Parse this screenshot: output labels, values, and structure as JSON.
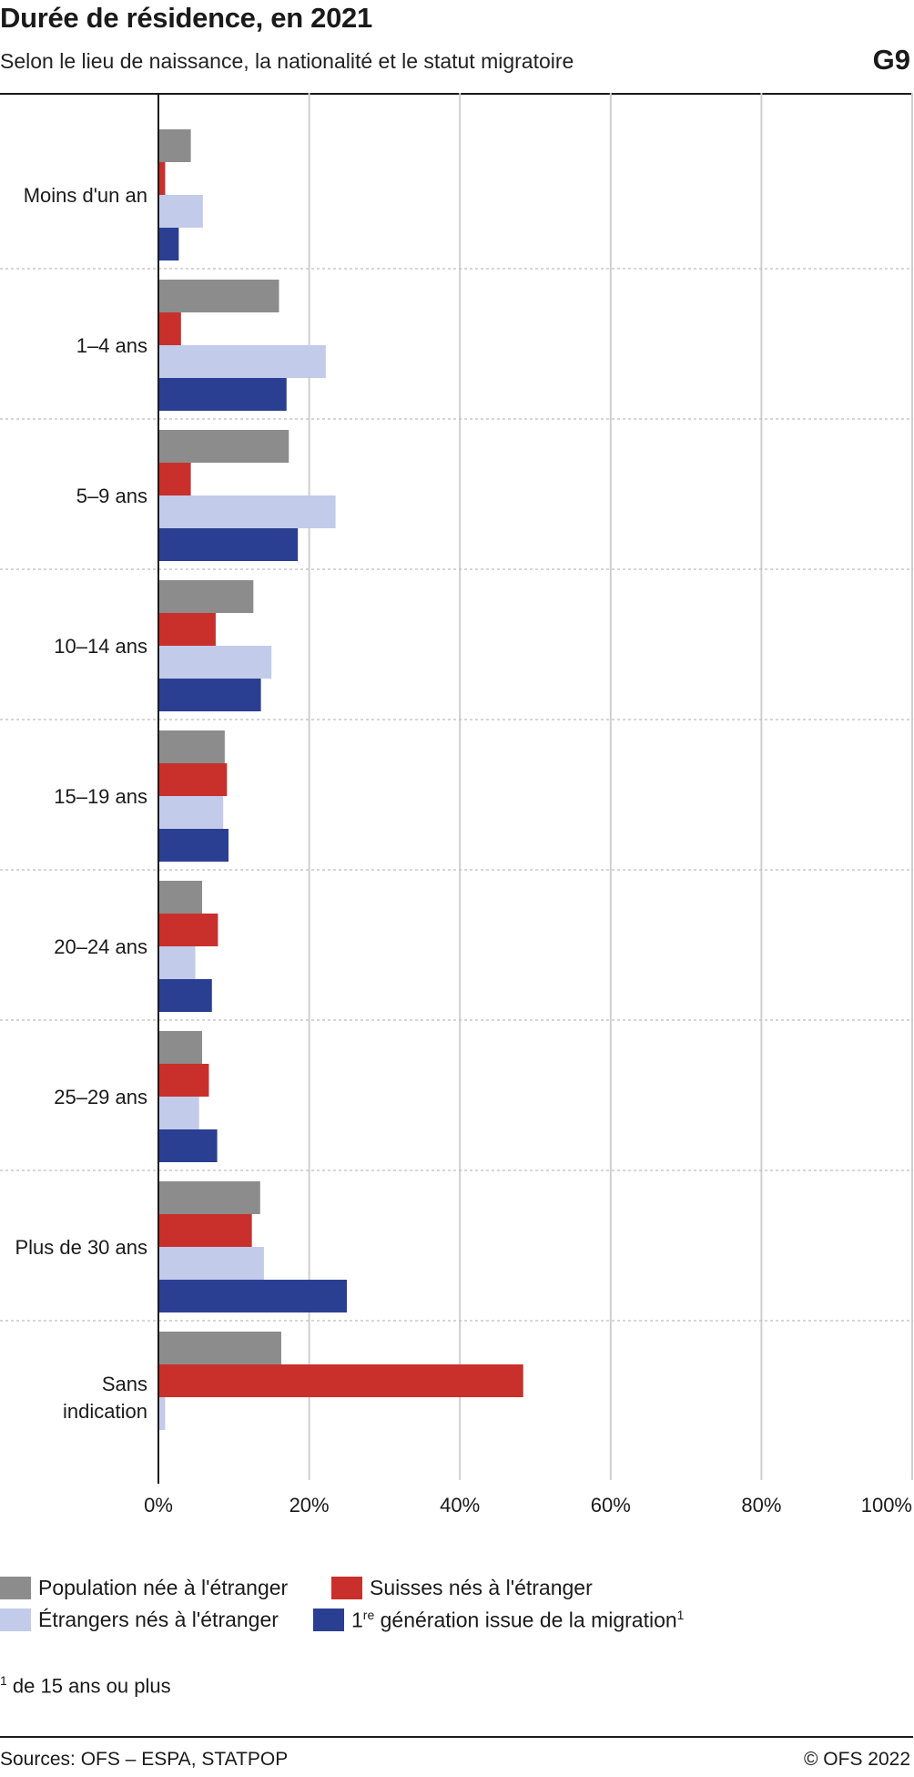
{
  "header": {
    "title": "Durée de résidence, en 2021",
    "subtitle": "Selon le lieu de naissance, la nationalité et le statut migratoire",
    "code": "G9"
  },
  "chart_data": {
    "type": "bar",
    "orientation": "horizontal",
    "title": "Durée de résidence, en 2021",
    "subtitle": "Selon le lieu de naissance, la nationalité et le statut migratoire",
    "categories": [
      "Moins d'un an",
      "1–4 ans",
      "5–9 ans",
      "10–14 ans",
      "15–19 ans",
      "20–24 ans",
      "25–29 ans",
      "Plus de 30 ans",
      "Sans indication"
    ],
    "category_lines": [
      [
        "Moins d'un an"
      ],
      [
        "1–4 ans"
      ],
      [
        "5–9 ans"
      ],
      [
        "10–14 ans"
      ],
      [
        "15–19 ans"
      ],
      [
        "20–24 ans"
      ],
      [
        "25–29 ans"
      ],
      [
        "Plus de 30 ans"
      ],
      [
        "Sans",
        "indication"
      ]
    ],
    "series": [
      {
        "name": "Population née à  l'étranger",
        "color": "#8c8c8c",
        "values": [
          4.3,
          16.0,
          17.3,
          12.6,
          8.8,
          5.8,
          5.8,
          13.5,
          16.3
        ]
      },
      {
        "name": "Suisses nés à l'étranger",
        "color": "#c9302c",
        "values": [
          0.9,
          3.0,
          4.3,
          7.6,
          9.1,
          7.9,
          6.7,
          12.4,
          48.4
        ]
      },
      {
        "name": "Étrangers nés à l'étranger",
        "color": "#c2cbea",
        "values": [
          5.9,
          22.2,
          23.5,
          15.0,
          8.6,
          4.9,
          5.4,
          14.0,
          0.9
        ]
      },
      {
        "name": "1re génération issue de la migration",
        "color": "#2b3f92",
        "values": [
          2.7,
          17.0,
          18.5,
          13.6,
          9.3,
          7.1,
          7.8,
          25.0,
          0
        ]
      }
    ],
    "xlim": [
      0,
      100
    ],
    "ticks": [
      "0%",
      "20%",
      "40%",
      "60%",
      "80%",
      "100%"
    ],
    "tick_values": [
      0,
      20,
      40,
      60,
      80,
      100
    ],
    "grid": true,
    "legend_position": "bottom"
  },
  "legend": {
    "items": [
      {
        "label": "Population née à  l'étranger",
        "color": "#8c8c8c"
      },
      {
        "label": "Suisses nés à l'étranger",
        "color": "#c9302c"
      },
      {
        "label": "Étrangers nés à l'étranger",
        "color": "#c2cbea"
      },
      {
        "label_pre": "1",
        "label_sup": "re",
        "label_post": " génération issue de la migration",
        "label_note": "1",
        "color": "#2b3f92"
      }
    ]
  },
  "footnote": {
    "mark": "1",
    "text": " de 15 ans ou plus"
  },
  "footer": {
    "sources": "Sources: OFS – ESPA, STATPOP",
    "copyright": "© OFS 2022"
  }
}
